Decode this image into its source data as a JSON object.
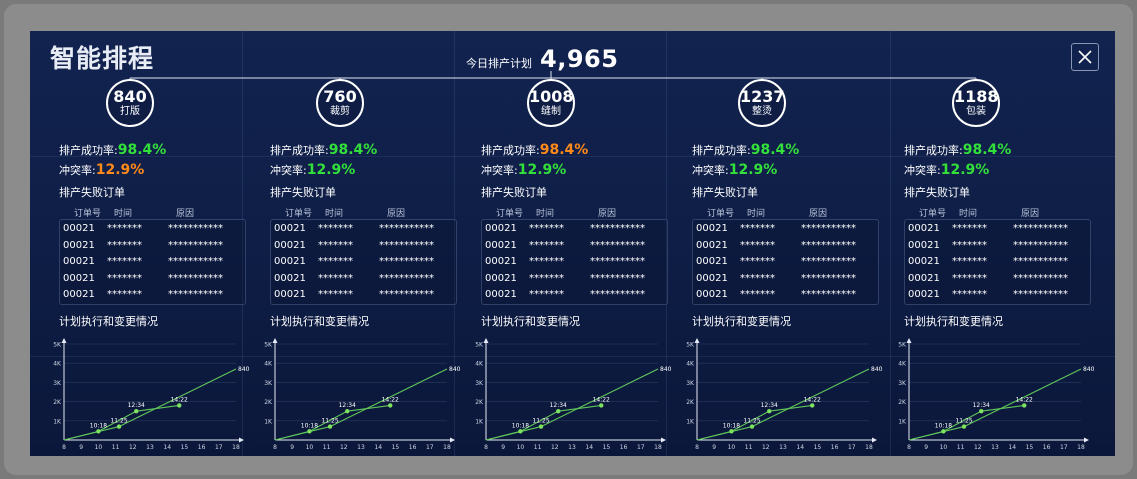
{
  "app": {
    "title": "智能排程",
    "close_label": "✕"
  },
  "plan": {
    "label": "今日排产计划",
    "value": "4,965"
  },
  "labels": {
    "success_rate": "排产成功率:",
    "conflict_rate": "冲突率:",
    "failed_orders": "排产失败订单",
    "col_order": "订单号",
    "col_time": "时间",
    "col_reason": "原因",
    "chart_title": "计划执行和变更情况"
  },
  "colors": {
    "success": "#33e03a",
    "warning": "#ff8a1a",
    "line": "#5fc75a",
    "point": "#7ee35f"
  },
  "panels": [
    {
      "count": "840",
      "name": "打版",
      "success_rate": "98.4%",
      "conflict_rate": "12.9%",
      "conflict_status": "warning",
      "rows": [
        [
          "00021",
          "*******",
          "***********"
        ],
        [
          "00021",
          "*******",
          "***********"
        ],
        [
          "00021",
          "*******",
          "***********"
        ],
        [
          "00021",
          "*******",
          "***********"
        ],
        [
          "00021",
          "*******",
          "***********"
        ]
      ]
    },
    {
      "count": "760",
      "name": "裁剪",
      "success_rate": "98.4%",
      "conflict_rate": "12.9%",
      "conflict_status": "ok",
      "rows": [
        [
          "00021",
          "*******",
          "***********"
        ],
        [
          "00021",
          "*******",
          "***********"
        ],
        [
          "00021",
          "*******",
          "***********"
        ],
        [
          "00021",
          "*******",
          "***********"
        ],
        [
          "00021",
          "*******",
          "***********"
        ]
      ]
    },
    {
      "count": "1008",
      "name": "缝制",
      "success_rate": "98.4%",
      "conflict_rate": "12.9%",
      "conflict_status": "ok",
      "success_status": "warning",
      "rows": [
        [
          "00021",
          "*******",
          "***********"
        ],
        [
          "00021",
          "*******",
          "***********"
        ],
        [
          "00021",
          "*******",
          "***********"
        ],
        [
          "00021",
          "*******",
          "***********"
        ],
        [
          "00021",
          "*******",
          "***********"
        ]
      ]
    },
    {
      "count": "1237",
      "name": "整烫",
      "success_rate": "98.4%",
      "conflict_rate": "12.9%",
      "conflict_status": "ok",
      "rows": [
        [
          "00021",
          "*******",
          "***********"
        ],
        [
          "00021",
          "*******",
          "***********"
        ],
        [
          "00021",
          "*******",
          "***********"
        ],
        [
          "00021",
          "*******",
          "***********"
        ],
        [
          "00021",
          "*******",
          "***********"
        ]
      ]
    },
    {
      "count": "1188",
      "name": "包装",
      "success_rate": "98.4%",
      "conflict_rate": "12.9%",
      "conflict_status": "ok",
      "rows": [
        [
          "00021",
          "*******",
          "***********"
        ],
        [
          "00021",
          "*******",
          "***********"
        ],
        [
          "00021",
          "*******",
          "***********"
        ],
        [
          "00021",
          "*******",
          "***********"
        ],
        [
          "00021",
          "*******",
          "***********"
        ]
      ]
    }
  ],
  "chart_data": {
    "type": "line",
    "x_ticks": [
      "8",
      "9",
      "10",
      "11",
      "12",
      "13",
      "14",
      "15",
      "16",
      "17",
      "18"
    ],
    "y_ticks": [
      "1K",
      "2K",
      "3K",
      "4K",
      "5K"
    ],
    "xlim": [
      8,
      18
    ],
    "ylim": [
      0,
      5000
    ],
    "series": [
      {
        "x": [
          8,
          11.2,
          18
        ],
        "y": [
          0,
          700,
          3700
        ]
      },
      {
        "x": [
          8,
          10,
          12.2,
          14.7
        ],
        "y": [
          0,
          450,
          1500,
          1800
        ]
      }
    ],
    "points": [
      {
        "x": 10,
        "y": 450,
        "label": "10:18"
      },
      {
        "x": 11.2,
        "y": 700,
        "label": "11:25"
      },
      {
        "x": 12.2,
        "y": 1500,
        "label": "12:34"
      },
      {
        "x": 14.7,
        "y": 1800,
        "label": "14:22"
      }
    ],
    "end_label": "840"
  }
}
